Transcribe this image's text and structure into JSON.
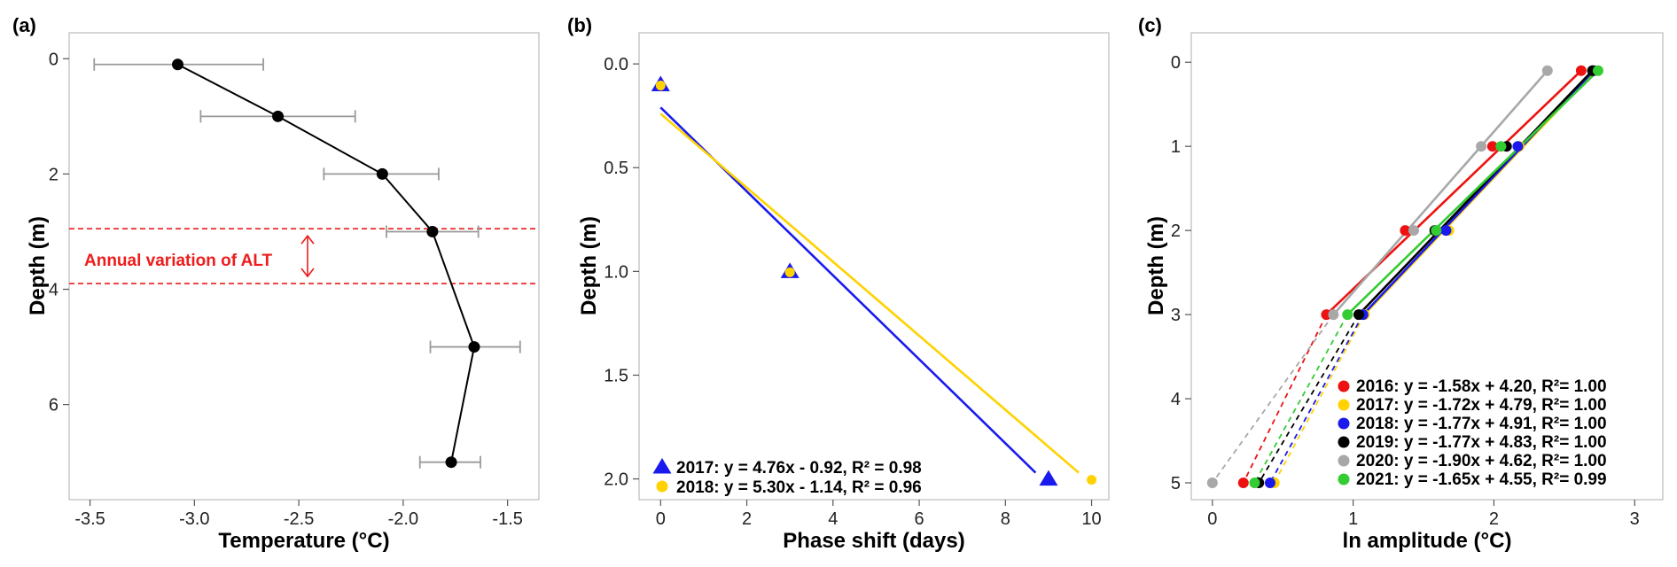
{
  "chart_data": [
    {
      "panel": "(a)",
      "type": "line",
      "xlabel": "Temperature (°C)",
      "ylabel": "Depth (m)",
      "xlim": [
        -3.6,
        -1.35
      ],
      "ylim": [
        -0.45,
        7.65
      ],
      "y_inverted": true,
      "xticks": [
        -3.5,
        -3.0,
        -2.5,
        -2.0,
        -1.5
      ],
      "xtick_labels": [
        "-3.5",
        "-3.0",
        "-2.5",
        "-2.0",
        "-1.5"
      ],
      "yticks": [
        0,
        2,
        4,
        6
      ],
      "ytick_labels": [
        "0",
        "2",
        "4",
        "6"
      ],
      "points": [
        {
          "temp": -3.08,
          "depth": 0.1,
          "err_lo": -3.48,
          "err_hi": -2.67
        },
        {
          "temp": -2.6,
          "depth": 1.0,
          "err_lo": -2.97,
          "err_hi": -2.23
        },
        {
          "temp": -2.1,
          "depth": 2.0,
          "err_lo": -2.38,
          "err_hi": -1.83
        },
        {
          "temp": -1.86,
          "depth": 3.0,
          "err_lo": -2.08,
          "err_hi": -1.64
        },
        {
          "temp": -1.66,
          "depth": 5.0,
          "err_lo": -1.87,
          "err_hi": -1.44
        },
        {
          "temp": -1.77,
          "depth": 7.0,
          "err_lo": -1.92,
          "err_hi": -1.63
        }
      ],
      "alt_band": {
        "upper_depth": 2.95,
        "lower_depth": 3.9,
        "label": "Annual variation of ALT",
        "color": "#ee1c1c"
      }
    },
    {
      "panel": "(b)",
      "type": "scatter",
      "xlabel": "Phase shift (days)",
      "ylabel": "Depth (m)",
      "xlim": [
        -0.5,
        10.4
      ],
      "ylim": [
        -0.15,
        2.1
      ],
      "y_inverted": true,
      "xticks": [
        0,
        2,
        4,
        6,
        8,
        10
      ],
      "xtick_labels": [
        "0",
        "2",
        "4",
        "6",
        "8",
        "10"
      ],
      "yticks": [
        0.0,
        0.5,
        1.0,
        1.5,
        2.0
      ],
      "ytick_labels": [
        "0.0",
        "0.5",
        "1.0",
        "1.5",
        "2.0"
      ],
      "series": [
        {
          "name": "2017",
          "marker": "triangle",
          "color": "#1a1aee",
          "points": [
            {
              "x": 0,
              "y": 0.1
            },
            {
              "x": 3,
              "y": 1.0
            },
            {
              "x": 9,
              "y": 2.0
            }
          ],
          "fit": {
            "x0": 0,
            "y0": 0.21,
            "x1": 8.7,
            "y1": 1.97
          },
          "legend": "2017: y = 4.76x - 0.92, R² = 0.98"
        },
        {
          "name": "2018",
          "marker": "circle",
          "color": "#ffd200",
          "points": [
            {
              "x": 0,
              "y": 0.1
            },
            {
              "x": 3,
              "y": 1.0
            },
            {
              "x": 10,
              "y": 2.0
            }
          ],
          "fit": {
            "x0": 0,
            "y0": 0.24,
            "x1": 9.7,
            "y1": 1.97
          },
          "legend": "2018: y = 5.30x - 1.14, R² = 0.96"
        }
      ]
    },
    {
      "panel": "(c)",
      "type": "line",
      "xlabel": "ln amplitude (°C)",
      "ylabel": "Depth (m)",
      "xlim": [
        -0.15,
        3.2
      ],
      "ylim": [
        -0.35,
        5.2
      ],
      "y_inverted": true,
      "xticks": [
        0,
        1,
        2,
        3
      ],
      "xtick_labels": [
        "0",
        "1",
        "2",
        "3"
      ],
      "yticks": [
        0,
        1,
        2,
        3,
        4,
        5
      ],
      "ytick_labels": [
        "0",
        "1",
        "2",
        "3",
        "4",
        "5"
      ],
      "series": [
        {
          "name": "2016",
          "color": "#ee1111",
          "points": [
            [
              2.62,
              0.1
            ],
            [
              1.99,
              1.0
            ],
            [
              1.37,
              2.0
            ],
            [
              0.81,
              3.0
            ]
          ],
          "extrap": [
            0.22,
            5.0
          ],
          "legend": "2016: y = -1.58x + 4.20, R²= 1.00"
        },
        {
          "name": "2017",
          "color": "#ffd200",
          "points": [
            [
              2.72,
              0.1
            ],
            [
              2.18,
              1.0
            ],
            [
              1.68,
              2.0
            ],
            [
              1.08,
              3.0
            ]
          ],
          "extrap": [
            0.44,
            5.0
          ],
          "legend": "2017: y = -1.72x + 4.79, R²= 1.00"
        },
        {
          "name": "2018",
          "color": "#1a1aee",
          "points": [
            [
              2.71,
              0.1
            ],
            [
              2.17,
              1.0
            ],
            [
              1.66,
              2.0
            ],
            [
              1.07,
              3.0
            ]
          ],
          "extrap": [
            0.41,
            5.0
          ],
          "legend": "2018: y = -1.77x + 4.91, R²= 1.00"
        },
        {
          "name": "2019",
          "color": "#000000",
          "points": [
            [
              2.7,
              0.1
            ],
            [
              2.09,
              1.0
            ],
            [
              1.58,
              2.0
            ],
            [
              1.04,
              3.0
            ]
          ],
          "extrap": [
            0.33,
            5.0
          ],
          "legend": "2019: y = -1.77x + 4.83, R²= 1.00"
        },
        {
          "name": "2020",
          "color": "#a8a8a8",
          "points": [
            [
              2.38,
              0.1
            ],
            [
              1.91,
              1.0
            ],
            [
              1.43,
              2.0
            ],
            [
              0.86,
              3.0
            ]
          ],
          "extrap": [
            0.0,
            5.0
          ],
          "legend": "2020: y = -1.90x + 4.62, R²= 1.00"
        },
        {
          "name": "2021",
          "color": "#33cc33",
          "points": [
            [
              2.74,
              0.1
            ],
            [
              2.05,
              1.0
            ],
            [
              1.59,
              2.0
            ],
            [
              0.96,
              3.0
            ]
          ],
          "extrap": [
            0.3,
            5.0
          ],
          "legend": "2021: y = -1.65x + 4.55, R²= 0.99"
        }
      ]
    }
  ]
}
